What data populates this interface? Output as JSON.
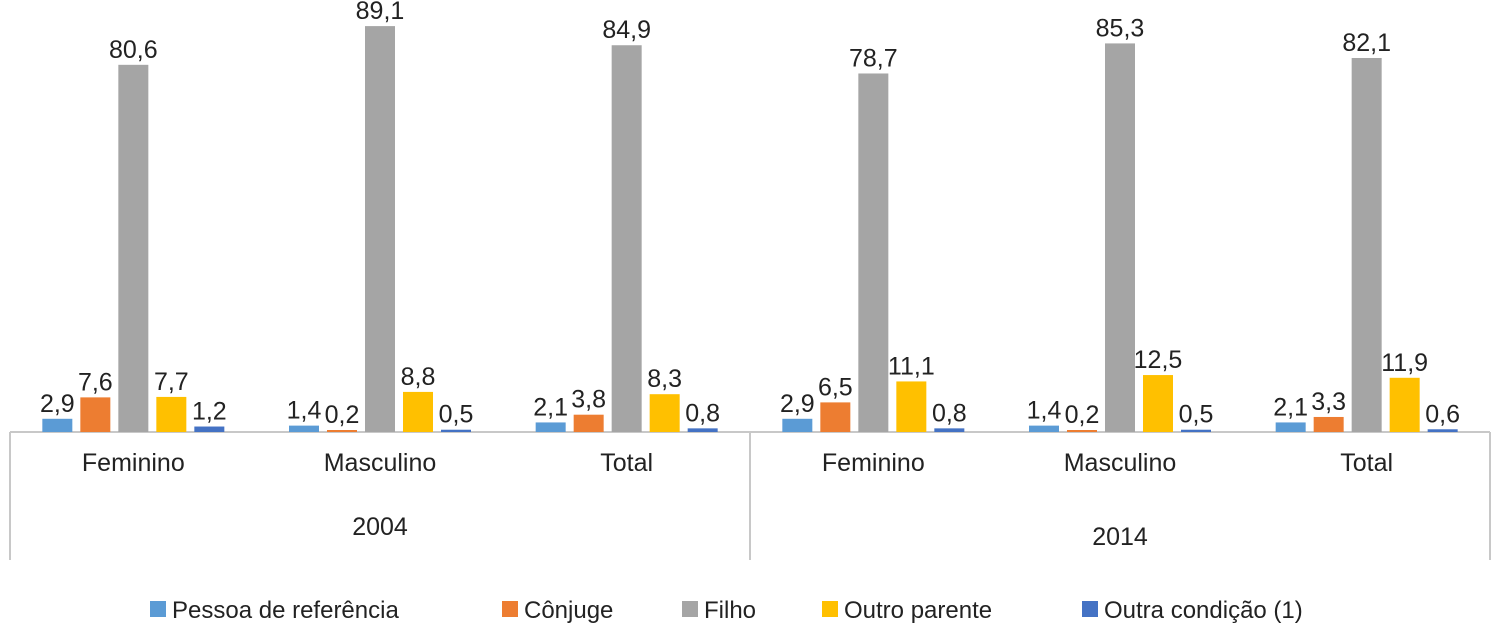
{
  "chart_data": {
    "type": "bar",
    "groups": [
      {
        "label": "2004",
        "categories": [
          "Feminino",
          "Masculino",
          "Total"
        ]
      },
      {
        "label": "2014",
        "categories": [
          "Feminino",
          "Masculino",
          "Total"
        ]
      }
    ],
    "series": [
      {
        "name": "Pessoa de referência",
        "color": "#5b9bd5",
        "values": [
          2.9,
          1.4,
          2.1,
          2.9,
          1.4,
          2.1
        ],
        "labels": [
          "2,9",
          "1,4",
          "2,1",
          "2,9",
          "1,4",
          "2,1"
        ]
      },
      {
        "name": "Cônjuge",
        "color": "#ed7d31",
        "values": [
          7.6,
          0.2,
          3.8,
          6.5,
          0.2,
          3.3
        ],
        "labels": [
          "7,6",
          "0,2",
          "3,8",
          "6,5",
          "0,2",
          "3,3"
        ]
      },
      {
        "name": "Filho",
        "color": "#a5a5a5",
        "values": [
          80.6,
          89.1,
          84.9,
          78.7,
          85.3,
          82.1
        ],
        "labels": [
          "80,6",
          "89,1",
          "84,9",
          "78,7",
          "85,3",
          "82,1"
        ]
      },
      {
        "name": "Outro parente",
        "color": "#ffc000",
        "values": [
          7.7,
          8.8,
          8.3,
          11.1,
          12.5,
          11.9
        ],
        "labels": [
          "7,7",
          "8,8",
          "8,3",
          "11,1",
          "12,5",
          "11,9"
        ]
      },
      {
        "name": "Outra condição (1)",
        "color": "#4472c4",
        "values": [
          1.2,
          0.5,
          0.8,
          0.8,
          0.5,
          0.6
        ],
        "labels": [
          "1,2",
          "0,5",
          "0,8",
          "0,8",
          "0,5",
          "0,6"
        ]
      }
    ],
    "ylim": [
      0,
      90
    ],
    "grid": false,
    "legend_position": "bottom",
    "title": "",
    "xlabel": "",
    "ylabel": ""
  }
}
